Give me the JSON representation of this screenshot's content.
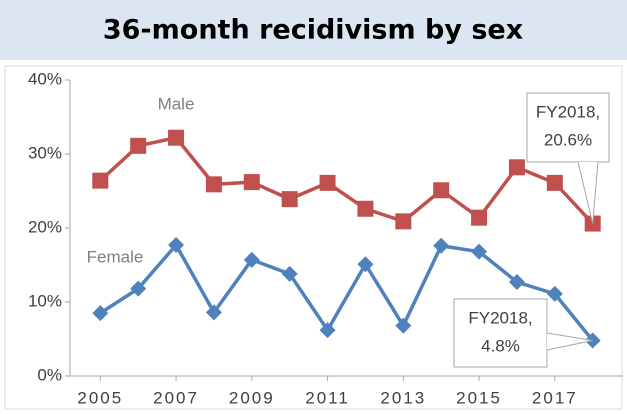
{
  "chart_data": {
    "type": "line",
    "title": "36-month recidivism by sex",
    "x": [
      2005,
      2006,
      2007,
      2008,
      2009,
      2010,
      2011,
      2012,
      2013,
      2014,
      2015,
      2016,
      2017,
      2018
    ],
    "series": [
      {
        "name": "Male",
        "color": "#c0504d",
        "marker": "square",
        "values": [
          26.4,
          31.1,
          32.2,
          25.9,
          26.2,
          23.9,
          26.1,
          22.6,
          20.9,
          25.1,
          21.4,
          28.2,
          26.1,
          20.6
        ]
      },
      {
        "name": "Female",
        "color": "#4f81bd",
        "marker": "diamond",
        "values": [
          8.5,
          11.8,
          17.7,
          8.6,
          15.7,
          13.8,
          6.2,
          15.1,
          6.8,
          17.6,
          16.8,
          12.7,
          11.1,
          4.8
        ]
      }
    ],
    "annotations": [
      {
        "lines": [
          "FY2018,",
          "20.6%"
        ]
      },
      {
        "lines": [
          "FY2018,",
          "4.8%"
        ]
      }
    ],
    "xlim": [
      2004.2,
      2018.8
    ],
    "xticks": [
      2005,
      2007,
      2009,
      2011,
      2013,
      2015,
      2017
    ],
    "ylim": [
      0,
      40
    ],
    "yticks": [
      {
        "value": 0,
        "label": "0%"
      },
      {
        "value": 10,
        "label": "10%"
      },
      {
        "value": 20,
        "label": "20%"
      },
      {
        "value": 30,
        "label": "30%"
      },
      {
        "value": 40,
        "label": "40%"
      }
    ],
    "grid": false
  }
}
